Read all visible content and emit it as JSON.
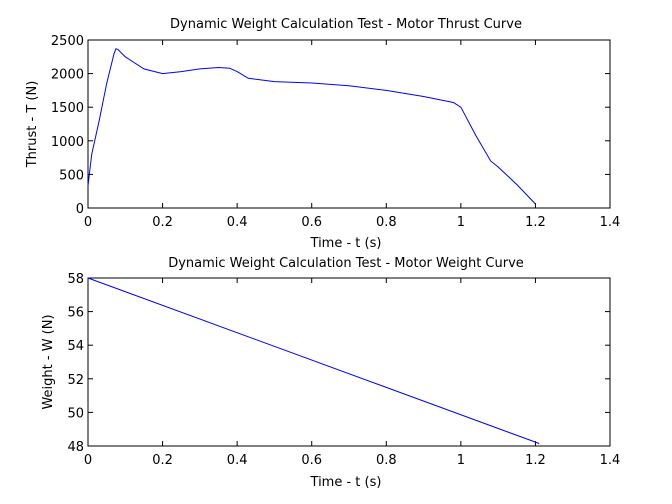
{
  "chart_data": [
    {
      "type": "line",
      "title": "Dynamic Weight Calculation Test - Motor Thrust Curve",
      "xlabel": "Time - t (s)",
      "ylabel": "Thrust - T (N)",
      "xlim": [
        0,
        1.4
      ],
      "ylim": [
        0,
        2500
      ],
      "xticks": [
        0,
        0.2,
        0.4,
        0.6,
        0.8,
        1,
        1.2,
        1.4
      ],
      "xtick_labels": [
        "0",
        "0.2",
        "0.4",
        "0.6",
        "0.8",
        "1",
        "1.2",
        "1.4"
      ],
      "yticks": [
        0,
        500,
        1000,
        1500,
        2000,
        2500
      ],
      "ytick_labels": [
        "0",
        "500",
        "1000",
        "1500",
        "2000",
        "2500"
      ],
      "grid": false,
      "series": [
        {
          "color": "#0000ff",
          "x": [
            0,
            0.01,
            0.03,
            0.05,
            0.07,
            0.075,
            0.08,
            0.1,
            0.15,
            0.2,
            0.25,
            0.3,
            0.35,
            0.38,
            0.4,
            0.43,
            0.5,
            0.6,
            0.7,
            0.8,
            0.9,
            0.98,
            1.0,
            1.04,
            1.08,
            1.1,
            1.15,
            1.2
          ],
          "y": [
            330,
            800,
            1300,
            1850,
            2300,
            2370,
            2360,
            2250,
            2070,
            2000,
            2030,
            2070,
            2090,
            2080,
            2030,
            1930,
            1880,
            1860,
            1820,
            1750,
            1660,
            1570,
            1500,
            1080,
            700,
            610,
            350,
            60
          ]
        }
      ]
    },
    {
      "type": "line",
      "title": "Dynamic Weight Calculation Test - Motor Weight Curve",
      "xlabel": "Time - t (s)",
      "ylabel": "Weight - W (N)",
      "xlim": [
        0,
        1.4
      ],
      "ylim": [
        48,
        58
      ],
      "xticks": [
        0,
        0.2,
        0.4,
        0.6,
        0.8,
        1,
        1.2,
        1.4
      ],
      "xtick_labels": [
        "0",
        "0.2",
        "0.4",
        "0.6",
        "0.8",
        "1",
        "1.2",
        "1.4"
      ],
      "yticks": [
        48,
        50,
        52,
        54,
        56,
        58
      ],
      "ytick_labels": [
        "48",
        "50",
        "52",
        "54",
        "56",
        "58"
      ],
      "grid": false,
      "series": [
        {
          "color": "#0000ff",
          "x": [
            0,
            1.21
          ],
          "y": [
            58,
            48.15
          ]
        }
      ]
    }
  ]
}
